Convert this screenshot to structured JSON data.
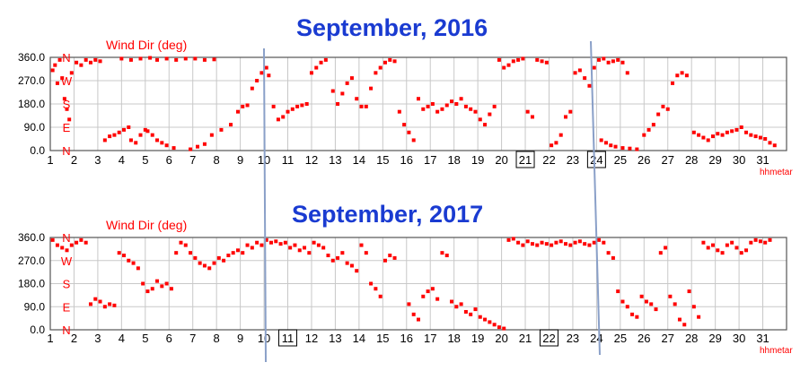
{
  "chart_data": [
    {
      "type": "scatter",
      "title": "September, 2016",
      "ylabel": "Wind Dir (deg)",
      "xlabel": "hhmetar",
      "ylim": [
        0,
        360
      ],
      "yticks": [
        "360.0",
        "270.0",
        "180.0",
        "90.0",
        "0.0"
      ],
      "compass_labels": [
        "N",
        "W",
        "S",
        "E",
        "N"
      ],
      "xlim": [
        1,
        32
      ],
      "xticks": [
        "1",
        "2",
        "3",
        "4",
        "5",
        "6",
        "7",
        "8",
        "9",
        "10",
        "11",
        "12",
        "13",
        "14",
        "15",
        "16",
        "17",
        "18",
        "19",
        "20",
        "21",
        "22",
        "23",
        "24",
        "25",
        "26",
        "27",
        "28",
        "29",
        "30",
        "31"
      ],
      "boxed_days": [
        "21",
        "24"
      ],
      "grid": true,
      "marker_color": "#ff0000",
      "points": [
        [
          1.1,
          310
        ],
        [
          1.2,
          330
        ],
        [
          1.3,
          260
        ],
        [
          1.4,
          350
        ],
        [
          1.5,
          280
        ],
        [
          1.6,
          200
        ],
        [
          1.7,
          160
        ],
        [
          1.8,
          120
        ],
        [
          1.9,
          300
        ],
        [
          2.1,
          340
        ],
        [
          2.3,
          330
        ],
        [
          2.5,
          350
        ],
        [
          2.7,
          340
        ],
        [
          2.9,
          350
        ],
        [
          3.1,
          345
        ],
        [
          3.3,
          40
        ],
        [
          3.5,
          55
        ],
        [
          3.7,
          60
        ],
        [
          3.9,
          70
        ],
        [
          4.1,
          80
        ],
        [
          4.3,
          90
        ],
        [
          4.4,
          40
        ],
        [
          4.6,
          30
        ],
        [
          4.8,
          60
        ],
        [
          5.0,
          80
        ],
        [
          5.1,
          75
        ],
        [
          5.3,
          60
        ],
        [
          5.5,
          40
        ],
        [
          5.7,
          30
        ],
        [
          5.9,
          20
        ],
        [
          6.2,
          10
        ],
        [
          4.0,
          355
        ],
        [
          4.4,
          350
        ],
        [
          4.8,
          355
        ],
        [
          5.2,
          358
        ],
        [
          5.5,
          350
        ],
        [
          5.9,
          355
        ],
        [
          6.3,
          350
        ],
        [
          6.7,
          355
        ],
        [
          7.1,
          355
        ],
        [
          7.5,
          350
        ],
        [
          7.9,
          352
        ],
        [
          6.9,
          5
        ],
        [
          7.2,
          15
        ],
        [
          7.5,
          25
        ],
        [
          7.8,
          60
        ],
        [
          8.2,
          80
        ],
        [
          8.6,
          100
        ],
        [
          8.9,
          150
        ],
        [
          9.1,
          170
        ],
        [
          9.3,
          175
        ],
        [
          9.5,
          240
        ],
        [
          9.7,
          270
        ],
        [
          9.9,
          300
        ],
        [
          10.1,
          320
        ],
        [
          10.2,
          290
        ],
        [
          10.4,
          170
        ],
        [
          10.6,
          120
        ],
        [
          10.8,
          130
        ],
        [
          11.0,
          150
        ],
        [
          11.2,
          160
        ],
        [
          11.4,
          170
        ],
        [
          11.6,
          175
        ],
        [
          11.8,
          180
        ],
        [
          12.0,
          300
        ],
        [
          12.2,
          320
        ],
        [
          12.4,
          340
        ],
        [
          12.6,
          350
        ],
        [
          12.9,
          230
        ],
        [
          13.1,
          180
        ],
        [
          13.3,
          220
        ],
        [
          13.5,
          260
        ],
        [
          13.7,
          280
        ],
        [
          13.9,
          200
        ],
        [
          14.1,
          170
        ],
        [
          14.3,
          170
        ],
        [
          14.5,
          240
        ],
        [
          14.7,
          300
        ],
        [
          14.9,
          320
        ],
        [
          15.1,
          340
        ],
        [
          15.3,
          350
        ],
        [
          15.5,
          345
        ],
        [
          15.7,
          150
        ],
        [
          15.9,
          100
        ],
        [
          16.1,
          70
        ],
        [
          16.3,
          40
        ],
        [
          16.5,
          200
        ],
        [
          16.7,
          160
        ],
        [
          16.9,
          170
        ],
        [
          17.1,
          180
        ],
        [
          17.3,
          150
        ],
        [
          17.5,
          160
        ],
        [
          17.7,
          175
        ],
        [
          17.9,
          190
        ],
        [
          18.1,
          180
        ],
        [
          18.3,
          200
        ],
        [
          18.5,
          170
        ],
        [
          18.7,
          160
        ],
        [
          18.9,
          150
        ],
        [
          19.1,
          120
        ],
        [
          19.3,
          100
        ],
        [
          19.5,
          140
        ],
        [
          19.7,
          170
        ],
        [
          19.9,
          350
        ],
        [
          20.1,
          320
        ],
        [
          20.3,
          330
        ],
        [
          20.5,
          345
        ],
        [
          20.7,
          350
        ],
        [
          20.9,
          355
        ],
        [
          21.1,
          150
        ],
        [
          21.3,
          130
        ],
        [
          21.5,
          350
        ],
        [
          21.7,
          345
        ],
        [
          21.9,
          340
        ],
        [
          22.1,
          20
        ],
        [
          22.3,
          30
        ],
        [
          22.5,
          60
        ],
        [
          22.7,
          130
        ],
        [
          22.9,
          150
        ],
        [
          23.1,
          300
        ],
        [
          23.3,
          310
        ],
        [
          23.5,
          280
        ],
        [
          23.7,
          250
        ],
        [
          23.9,
          320
        ],
        [
          24.1,
          350
        ],
        [
          24.3,
          355
        ],
        [
          24.5,
          340
        ],
        [
          24.7,
          345
        ],
        [
          24.9,
          350
        ],
        [
          25.1,
          340
        ],
        [
          25.3,
          300
        ],
        [
          24.2,
          40
        ],
        [
          24.4,
          30
        ],
        [
          24.6,
          20
        ],
        [
          24.8,
          15
        ],
        [
          25.1,
          10
        ],
        [
          25.4,
          8
        ],
        [
          25.7,
          5
        ],
        [
          26.0,
          60
        ],
        [
          26.2,
          80
        ],
        [
          26.4,
          100
        ],
        [
          26.6,
          140
        ],
        [
          26.8,
          170
        ],
        [
          27.0,
          160
        ],
        [
          27.2,
          260
        ],
        [
          27.4,
          290
        ],
        [
          27.6,
          300
        ],
        [
          27.8,
          290
        ],
        [
          28.1,
          70
        ],
        [
          28.3,
          60
        ],
        [
          28.5,
          50
        ],
        [
          28.7,
          40
        ],
        [
          28.9,
          55
        ],
        [
          29.1,
          65
        ],
        [
          29.3,
          60
        ],
        [
          29.5,
          70
        ],
        [
          29.7,
          75
        ],
        [
          29.9,
          80
        ],
        [
          30.1,
          90
        ],
        [
          30.3,
          70
        ],
        [
          30.5,
          60
        ],
        [
          30.7,
          55
        ],
        [
          30.9,
          50
        ],
        [
          31.1,
          45
        ],
        [
          31.3,
          30
        ],
        [
          31.5,
          20
        ]
      ]
    },
    {
      "type": "scatter",
      "title": "September, 2017",
      "ylabel": "Wind Dir (deg)",
      "xlabel": "hhmetar",
      "ylim": [
        0,
        360
      ],
      "yticks": [
        "360.0",
        "270.0",
        "180.0",
        "90.0",
        "0.0"
      ],
      "compass_labels": [
        "N",
        "W",
        "S",
        "E",
        "N"
      ],
      "xlim": [
        1,
        32
      ],
      "xticks": [
        "1",
        "2",
        "3",
        "4",
        "5",
        "6",
        "7",
        "8",
        "9",
        "10",
        "11",
        "12",
        "13",
        "14",
        "15",
        "16",
        "17",
        "18",
        "19",
        "20",
        "21",
        "22",
        "23",
        "24",
        "25",
        "26",
        "27",
        "28",
        "29",
        "30",
        "31"
      ],
      "boxed_days": [
        "11",
        "22"
      ],
      "grid": true,
      "marker_color": "#ff0000",
      "points": [
        [
          1.1,
          350
        ],
        [
          1.3,
          330
        ],
        [
          1.5,
          320
        ],
        [
          1.7,
          310
        ],
        [
          1.9,
          330
        ],
        [
          2.1,
          340
        ],
        [
          2.3,
          350
        ],
        [
          2.5,
          340
        ],
        [
          2.7,
          100
        ],
        [
          2.9,
          120
        ],
        [
          3.1,
          110
        ],
        [
          3.3,
          90
        ],
        [
          3.5,
          100
        ],
        [
          3.7,
          95
        ],
        [
          3.9,
          300
        ],
        [
          4.1,
          290
        ],
        [
          4.3,
          270
        ],
        [
          4.5,
          260
        ],
        [
          4.7,
          240
        ],
        [
          4.9,
          180
        ],
        [
          5.1,
          150
        ],
        [
          5.3,
          160
        ],
        [
          5.5,
          190
        ],
        [
          5.7,
          170
        ],
        [
          5.9,
          180
        ],
        [
          6.1,
          160
        ],
        [
          6.3,
          300
        ],
        [
          6.5,
          340
        ],
        [
          6.7,
          330
        ],
        [
          6.9,
          300
        ],
        [
          7.1,
          280
        ],
        [
          7.3,
          260
        ],
        [
          7.5,
          250
        ],
        [
          7.7,
          240
        ],
        [
          7.9,
          260
        ],
        [
          8.1,
          280
        ],
        [
          8.3,
          270
        ],
        [
          8.5,
          290
        ],
        [
          8.7,
          300
        ],
        [
          8.9,
          310
        ],
        [
          9.1,
          300
        ],
        [
          9.3,
          330
        ],
        [
          9.5,
          320
        ],
        [
          9.7,
          340
        ],
        [
          9.9,
          330
        ],
        [
          10.1,
          350
        ],
        [
          10.3,
          340
        ],
        [
          10.5,
          345
        ],
        [
          10.7,
          335
        ],
        [
          10.9,
          340
        ],
        [
          11.1,
          320
        ],
        [
          11.3,
          330
        ],
        [
          11.5,
          310
        ],
        [
          11.7,
          320
        ],
        [
          11.9,
          300
        ],
        [
          12.1,
          340
        ],
        [
          12.3,
          330
        ],
        [
          12.5,
          320
        ],
        [
          12.7,
          290
        ],
        [
          12.9,
          270
        ],
        [
          13.1,
          280
        ],
        [
          13.3,
          300
        ],
        [
          13.5,
          260
        ],
        [
          13.7,
          250
        ],
        [
          13.9,
          230
        ],
        [
          14.1,
          330
        ],
        [
          14.3,
          300
        ],
        [
          14.5,
          180
        ],
        [
          14.7,
          160
        ],
        [
          14.9,
          130
        ],
        [
          15.1,
          270
        ],
        [
          15.3,
          290
        ],
        [
          15.5,
          280
        ],
        [
          16.1,
          100
        ],
        [
          16.3,
          60
        ],
        [
          16.5,
          40
        ],
        [
          16.7,
          130
        ],
        [
          16.9,
          150
        ],
        [
          17.1,
          160
        ],
        [
          17.3,
          120
        ],
        [
          17.5,
          300
        ],
        [
          17.7,
          290
        ],
        [
          17.9,
          110
        ],
        [
          18.1,
          90
        ],
        [
          18.3,
          100
        ],
        [
          18.5,
          70
        ],
        [
          18.7,
          60
        ],
        [
          18.9,
          80
        ],
        [
          19.1,
          50
        ],
        [
          19.3,
          40
        ],
        [
          19.5,
          30
        ],
        [
          19.7,
          20
        ],
        [
          19.9,
          10
        ],
        [
          20.1,
          5
        ],
        [
          20.3,
          350
        ],
        [
          20.5,
          355
        ],
        [
          20.7,
          340
        ],
        [
          20.9,
          330
        ],
        [
          21.1,
          345
        ],
        [
          21.3,
          335
        ],
        [
          21.5,
          330
        ],
        [
          21.7,
          340
        ],
        [
          21.9,
          335
        ],
        [
          22.1,
          330
        ],
        [
          22.3,
          340
        ],
        [
          22.5,
          345
        ],
        [
          22.7,
          335
        ],
        [
          22.9,
          330
        ],
        [
          23.1,
          340
        ],
        [
          23.3,
          345
        ],
        [
          23.5,
          335
        ],
        [
          23.7,
          330
        ],
        [
          23.9,
          340
        ],
        [
          24.1,
          350
        ],
        [
          24.3,
          340
        ],
        [
          24.5,
          300
        ],
        [
          24.7,
          280
        ],
        [
          24.9,
          150
        ],
        [
          25.1,
          110
        ],
        [
          25.3,
          90
        ],
        [
          25.5,
          60
        ],
        [
          25.7,
          50
        ],
        [
          25.9,
          130
        ],
        [
          26.1,
          110
        ],
        [
          26.3,
          100
        ],
        [
          26.5,
          80
        ],
        [
          26.7,
          300
        ],
        [
          26.9,
          320
        ],
        [
          27.1,
          130
        ],
        [
          27.3,
          100
        ],
        [
          27.5,
          40
        ],
        [
          27.7,
          20
        ],
        [
          27.9,
          150
        ],
        [
          28.1,
          90
        ],
        [
          28.3,
          50
        ],
        [
          28.5,
          340
        ],
        [
          28.7,
          320
        ],
        [
          28.9,
          330
        ],
        [
          29.1,
          310
        ],
        [
          29.3,
          300
        ],
        [
          29.5,
          330
        ],
        [
          29.7,
          340
        ],
        [
          29.9,
          320
        ],
        [
          30.1,
          300
        ],
        [
          30.3,
          310
        ],
        [
          30.5,
          340
        ],
        [
          30.7,
          350
        ],
        [
          30.9,
          345
        ],
        [
          31.1,
          340
        ],
        [
          31.3,
          350
        ]
      ]
    }
  ]
}
